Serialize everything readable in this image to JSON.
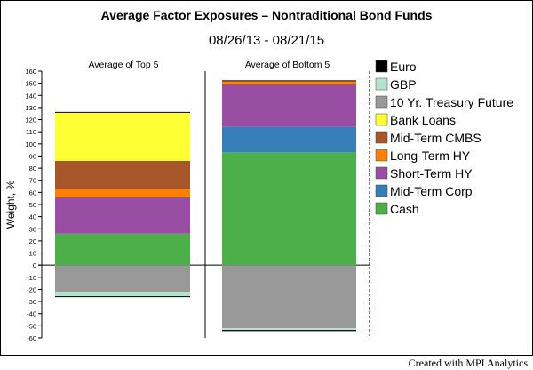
{
  "title": "Average Factor Exposures – Nontraditional Bond Funds",
  "subtitle": "08/26/13 - 08/21/15",
  "footer": "Created with MPI Analytics",
  "chart_data": {
    "type": "bar",
    "stacked": true,
    "title": "Average Factor Exposures – Nontraditional Bond Funds",
    "subtitle": "08/26/13 - 08/21/15",
    "xlabel": "",
    "ylabel": "Weight, %",
    "ylim": [
      -60,
      160
    ],
    "yticks": [
      -60,
      -50,
      -40,
      -30,
      -20,
      -10,
      0,
      10,
      20,
      30,
      40,
      50,
      60,
      70,
      80,
      90,
      100,
      110,
      120,
      130,
      140,
      150,
      160
    ],
    "grid": false,
    "legend_position": "right",
    "categories": [
      "Average of Top 5",
      "Average of Bottom 5"
    ],
    "series": [
      {
        "name": "Cash",
        "color": "#4daf4a",
        "values": [
          26,
          93
        ]
      },
      {
        "name": "Mid-Term Corp",
        "color": "#377eb8",
        "values": [
          0,
          21
        ]
      },
      {
        "name": "Short-Term HY",
        "color": "#984ea3",
        "values": [
          30,
          35
        ]
      },
      {
        "name": "Long-Term HY",
        "color": "#ff7f00",
        "values": [
          7,
          3
        ]
      },
      {
        "name": "Mid-Term CMBS",
        "color": "#a65628",
        "values": [
          23,
          0
        ]
      },
      {
        "name": "Bank Loans",
        "color": "#ffff33",
        "values": [
          40,
          0
        ]
      },
      {
        "name": "10 Yr. Treasury Future",
        "color": "#999999",
        "values": [
          -22,
          -52
        ]
      },
      {
        "name": "GBP",
        "color": "#b3e2cd",
        "values": [
          -4,
          -1.5
        ]
      },
      {
        "name": "Euro",
        "color": "#000000",
        "values": [
          0,
          -0.5
        ]
      }
    ],
    "legend_order": [
      "Euro",
      "GBP",
      "10 Yr. Treasury Future",
      "Bank Loans",
      "Mid-Term CMBS",
      "Long-Term HY",
      "Short-Term HY",
      "Mid-Term Corp",
      "Cash"
    ]
  }
}
